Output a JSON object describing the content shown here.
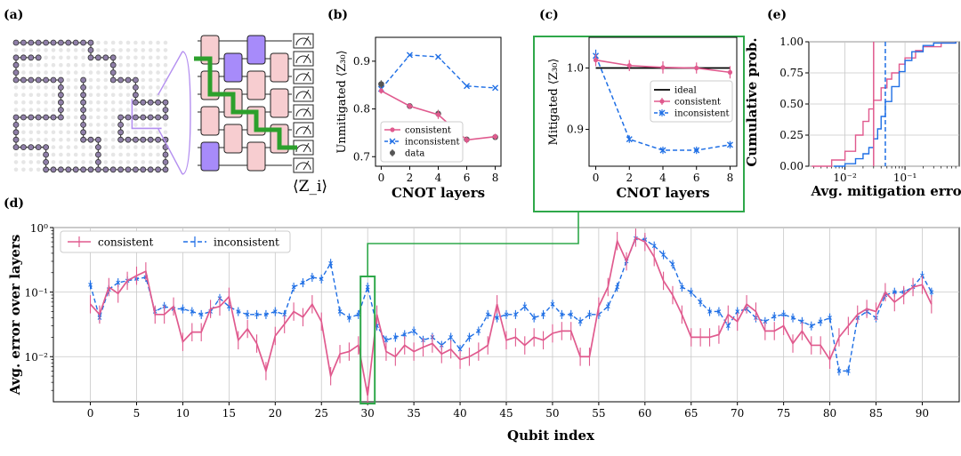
{
  "panels": {
    "a": "(a)",
    "b": "(b)",
    "c": "(c)",
    "d": "(d)",
    "e": "(e)"
  },
  "panel_a": {
    "operator_label": "⟨Z_i⟩",
    "colors": {
      "pink_gate": "#f7cdd0",
      "purple_gate": "#a78bfa",
      "path": "#2ca02c",
      "qubit_fill": "#8a8a8a",
      "link": "#444444"
    }
  },
  "colors": {
    "consistent": "#e05a8e",
    "inconsistent": "#1f6fe5",
    "ideal": "#000000",
    "data": "#555555",
    "highlight": "#2fa84a",
    "grid": "#c8c8c8"
  },
  "chart_data": [
    {
      "id": "b",
      "type": "line",
      "xlabel": "CNOT layers",
      "ylabel": "Unmitigated ⟨Z₃₀⟩",
      "xlim": [
        -0.4,
        8.4
      ],
      "ylim": [
        0.68,
        0.95
      ],
      "xticks": [
        0,
        2,
        4,
        6,
        8
      ],
      "yticks": [
        0.7,
        0.8,
        0.9
      ],
      "ytick_labels": [
        "0.7",
        "0.8",
        "0.9"
      ],
      "legend": [
        "consistent",
        "inconsistent",
        "data"
      ],
      "series": [
        {
          "name": "consistent",
          "x": [
            0,
            2,
            4,
            6,
            8
          ],
          "y": [
            0.838,
            0.806,
            0.788,
            0.735,
            0.742
          ],
          "err": [
            0.006,
            0.006,
            0.009,
            0.007,
            0.006
          ]
        },
        {
          "name": "inconsistent",
          "x": [
            0,
            2,
            4,
            6,
            8
          ],
          "y": [
            0.842,
            0.913,
            0.909,
            0.848,
            0.844
          ]
        },
        {
          "name": "data",
          "x": [
            0,
            2,
            4,
            6,
            8
          ],
          "y": [
            0.852,
            0.806,
            0.79,
            0.736,
            0.741
          ],
          "err": [
            0.008,
            0.006,
            0.008,
            0.006,
            0.005
          ]
        }
      ]
    },
    {
      "id": "c",
      "type": "line",
      "xlabel": "CNOT layers",
      "ylabel": "Mitigated ⟨Z₃₀⟩",
      "xlim": [
        -0.4,
        8.4
      ],
      "ylim": [
        0.84,
        1.05
      ],
      "xticks": [
        0,
        2,
        4,
        6,
        8
      ],
      "yticks": [
        0.9,
        1.0
      ],
      "ytick_labels": [
        "0.9",
        "1.0"
      ],
      "legend": [
        "ideal",
        "consistent",
        "inconsistent"
      ],
      "series": [
        {
          "name": "ideal",
          "x": [
            0,
            8
          ],
          "y": [
            1.0,
            1.0
          ]
        },
        {
          "name": "consistent",
          "x": [
            0,
            2,
            4,
            6,
            8
          ],
          "y": [
            1.013,
            1.004,
            1.001,
            1.0,
            0.993
          ],
          "err": [
            0.01,
            0.009,
            0.01,
            0.009,
            0.01
          ]
        },
        {
          "name": "inconsistent",
          "x": [
            0,
            2,
            4,
            6,
            8
          ],
          "y": [
            1.02,
            0.884,
            0.866,
            0.866,
            0.875
          ],
          "err": [
            0.01,
            0.006,
            0.006,
            0.006,
            0.006
          ]
        }
      ]
    },
    {
      "id": "e",
      "type": "line",
      "xlabel": "Avg. mitigation error",
      "ylabel": "Cumulative prob.",
      "xscale": "log",
      "xlim": [
        0.0025,
        0.8
      ],
      "ylim": [
        0,
        1.0
      ],
      "xticks": [
        0.01,
        0.1
      ],
      "xtick_labels": [
        "10⁻²",
        "10⁻¹"
      ],
      "yticks": [
        0,
        0.25,
        0.5,
        0.75,
        1.0
      ],
      "ytick_labels": [
        "0.00",
        "0.25",
        "0.50",
        "0.75",
        "1.00"
      ],
      "vlines": [
        {
          "name": "consistent",
          "x": 0.03
        },
        {
          "name": "inconsistent",
          "x": 0.047
        }
      ],
      "series": [
        {
          "name": "consistent",
          "x": [
            0.0028,
            0.006,
            0.01,
            0.015,
            0.02,
            0.025,
            0.03,
            0.04,
            0.05,
            0.06,
            0.08,
            0.1,
            0.15,
            0.2,
            0.4,
            0.7
          ],
          "y": [
            0.0,
            0.05,
            0.12,
            0.25,
            0.36,
            0.46,
            0.53,
            0.63,
            0.7,
            0.75,
            0.82,
            0.87,
            0.93,
            0.96,
            0.99,
            1.0
          ]
        },
        {
          "name": "inconsistent",
          "x": [
            0.0065,
            0.01,
            0.015,
            0.02,
            0.025,
            0.03,
            0.035,
            0.04,
            0.047,
            0.06,
            0.08,
            0.1,
            0.13,
            0.2,
            0.3,
            0.7
          ],
          "y": [
            0.0,
            0.02,
            0.06,
            0.1,
            0.15,
            0.22,
            0.3,
            0.4,
            0.52,
            0.64,
            0.76,
            0.85,
            0.92,
            0.97,
            0.99,
            1.0
          ]
        }
      ]
    },
    {
      "id": "d",
      "type": "line",
      "xlabel": "Qubit index",
      "ylabel": "Avg. error over layers",
      "yscale": "log",
      "xlim": [
        -4,
        94
      ],
      "ylim": [
        0.002,
        1.0
      ],
      "xticks": [
        0,
        5,
        10,
        15,
        20,
        25,
        30,
        35,
        40,
        45,
        50,
        55,
        60,
        65,
        70,
        75,
        80,
        85,
        90
      ],
      "yticks": [
        0.01,
        0.1,
        1.0
      ],
      "ytick_labels": [
        "10⁻²",
        "10⁻¹",
        "10⁰"
      ],
      "legend": [
        "consistent",
        "inconsistent"
      ],
      "highlight_x": 30,
      "series": [
        {
          "name": "consistent",
          "x": [
            0,
            1,
            2,
            3,
            4,
            5,
            6,
            7,
            8,
            9,
            10,
            11,
            12,
            13,
            14,
            15,
            16,
            17,
            18,
            19,
            20,
            21,
            22,
            23,
            24,
            25,
            26,
            27,
            28,
            29,
            30,
            31,
            32,
            33,
            34,
            35,
            36,
            37,
            38,
            39,
            40,
            41,
            42,
            43,
            44,
            45,
            46,
            47,
            48,
            49,
            50,
            51,
            52,
            53,
            54,
            55,
            56,
            57,
            58,
            59,
            60,
            61,
            62,
            63,
            64,
            65,
            66,
            67,
            68,
            69,
            70,
            71,
            72,
            73,
            74,
            75,
            76,
            77,
            78,
            79,
            80,
            81,
            82,
            83,
            84,
            85,
            86,
            87,
            88,
            89,
            90,
            91
          ],
          "y": [
            0.065,
            0.045,
            0.12,
            0.095,
            0.15,
            0.18,
            0.21,
            0.045,
            0.045,
            0.06,
            0.017,
            0.024,
            0.024,
            0.055,
            0.06,
            0.085,
            0.018,
            0.027,
            0.016,
            0.006,
            0.021,
            0.032,
            0.05,
            0.041,
            0.065,
            0.035,
            0.005,
            0.011,
            0.012,
            0.015,
            0.0025,
            0.045,
            0.012,
            0.01,
            0.015,
            0.012,
            0.014,
            0.016,
            0.011,
            0.013,
            0.009,
            0.01,
            0.012,
            0.015,
            0.065,
            0.018,
            0.02,
            0.015,
            0.02,
            0.018,
            0.023,
            0.025,
            0.025,
            0.01,
            0.01,
            0.06,
            0.12,
            0.62,
            0.3,
            0.7,
            0.6,
            0.35,
            0.15,
            0.09,
            0.045,
            0.02,
            0.02,
            0.02,
            0.022,
            0.045,
            0.035,
            0.065,
            0.05,
            0.025,
            0.025,
            0.03,
            0.016,
            0.025,
            0.015,
            0.015,
            0.009,
            0.02,
            0.03,
            0.045,
            0.055,
            0.05,
            0.1,
            0.07,
            0.09,
            0.12,
            0.13,
            0.065
          ]
        },
        {
          "name": "inconsistent",
          "x": [
            0,
            1,
            2,
            3,
            4,
            5,
            6,
            7,
            8,
            9,
            10,
            11,
            12,
            13,
            14,
            15,
            16,
            17,
            18,
            19,
            20,
            21,
            22,
            23,
            24,
            25,
            26,
            27,
            28,
            29,
            30,
            31,
            32,
            33,
            34,
            35,
            36,
            37,
            38,
            39,
            40,
            41,
            42,
            43,
            44,
            45,
            46,
            47,
            48,
            49,
            50,
            51,
            52,
            53,
            54,
            55,
            56,
            57,
            58,
            59,
            60,
            61,
            62,
            63,
            64,
            65,
            66,
            67,
            68,
            69,
            70,
            71,
            72,
            73,
            74,
            75,
            76,
            77,
            78,
            79,
            80,
            81,
            82,
            83,
            84,
            85,
            86,
            87,
            88,
            89,
            90,
            91
          ],
          "y": [
            0.13,
            0.04,
            0.11,
            0.14,
            0.15,
            0.16,
            0.17,
            0.05,
            0.06,
            0.055,
            0.055,
            0.05,
            0.045,
            0.05,
            0.08,
            0.06,
            0.05,
            0.045,
            0.045,
            0.045,
            0.05,
            0.045,
            0.12,
            0.14,
            0.17,
            0.16,
            0.28,
            0.05,
            0.04,
            0.045,
            0.12,
            0.03,
            0.018,
            0.02,
            0.022,
            0.025,
            0.018,
            0.02,
            0.015,
            0.02,
            0.013,
            0.02,
            0.025,
            0.045,
            0.04,
            0.045,
            0.045,
            0.06,
            0.04,
            0.045,
            0.065,
            0.045,
            0.045,
            0.035,
            0.045,
            0.045,
            0.06,
            0.12,
            0.3,
            0.68,
            0.65,
            0.52,
            0.38,
            0.27,
            0.12,
            0.1,
            0.07,
            0.05,
            0.05,
            0.03,
            0.05,
            0.055,
            0.04,
            0.035,
            0.042,
            0.045,
            0.04,
            0.035,
            0.03,
            0.035,
            0.04,
            0.006,
            0.006,
            0.04,
            0.05,
            0.04,
            0.09,
            0.1,
            0.1,
            0.12,
            0.18,
            0.1
          ]
        }
      ]
    }
  ]
}
